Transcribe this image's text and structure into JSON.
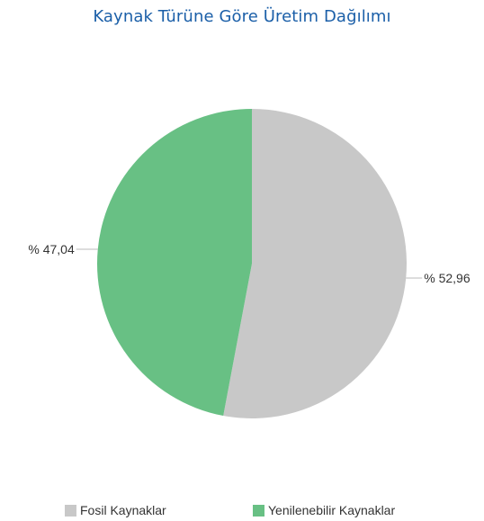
{
  "chart_data": {
    "type": "pie",
    "title": "Kaynak Türüne Göre Üretim Dağılımı",
    "slices": [
      {
        "name": "Fosil Kaynaklar",
        "value": 52.96,
        "label": "% 52,96",
        "color": "#c8c8c8"
      },
      {
        "name": "Yenilenebilir Kaynaklar",
        "value": 47.04,
        "label": "% 47,04",
        "color": "#68c084"
      }
    ],
    "legend_position": "bottom"
  },
  "colors": {
    "title": "#1b5fa8",
    "label_text": "#333333",
    "leader_line": "#bbbbbb"
  }
}
